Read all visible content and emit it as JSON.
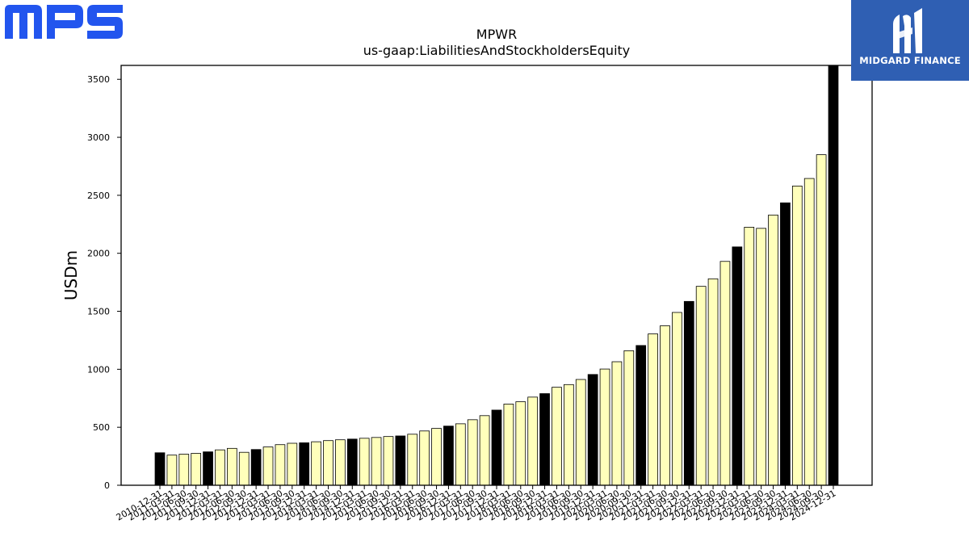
{
  "logos": {
    "left_text": "MPS",
    "right_text": "MIDGARD FINANCE",
    "left_color": "#2255ee",
    "right_bg": "#2f5fb3"
  },
  "chart_data": {
    "type": "bar",
    "title": "MPWR",
    "subtitle": "us-gaap:LiabilitiesAndStockholdersEquity",
    "ylabel": "USDm",
    "xlabel": "",
    "ylim": [
      0,
      3620
    ],
    "yticks": [
      0,
      500,
      1000,
      1500,
      2000,
      2500,
      3000,
      3500
    ],
    "grid": false,
    "colors": {
      "annual": "#000000",
      "quarterly": "#ffffbb",
      "edge": "#000000"
    },
    "categories": [
      "2010-12-31",
      "2011-03-31",
      "2011-06-30",
      "2011-09-30",
      "2011-12-31",
      "2012-03-31",
      "2012-06-30",
      "2012-09-30",
      "2012-12-31",
      "2013-03-31",
      "2013-06-30",
      "2013-09-30",
      "2013-12-31",
      "2014-03-31",
      "2014-06-30",
      "2014-09-30",
      "2014-12-31",
      "2015-03-31",
      "2015-06-30",
      "2015-09-30",
      "2015-12-31",
      "2016-03-31",
      "2016-06-30",
      "2016-09-30",
      "2016-12-31",
      "2017-03-31",
      "2017-06-30",
      "2017-09-30",
      "2017-12-31",
      "2018-03-31",
      "2018-06-30",
      "2018-09-30",
      "2018-12-31",
      "2019-03-31",
      "2019-06-30",
      "2019-09-30",
      "2019-12-31",
      "2020-03-31",
      "2020-06-30",
      "2020-09-30",
      "2020-12-31",
      "2021-03-31",
      "2021-06-30",
      "2021-09-30",
      "2021-12-31",
      "2022-03-31",
      "2022-06-30",
      "2022-09-30",
      "2022-12-31",
      "2023-03-31",
      "2023-06-30",
      "2023-09-30",
      "2023-12-31",
      "2024-03-31",
      "2024-06-30",
      "2024-09-30",
      "2024-12-31"
    ],
    "values": [
      280,
      260,
      268,
      275,
      288,
      305,
      318,
      284,
      308,
      330,
      350,
      362,
      366,
      375,
      385,
      392,
      398,
      405,
      412,
      420,
      425,
      440,
      468,
      490,
      510,
      530,
      565,
      600,
      648,
      700,
      720,
      760,
      790,
      845,
      868,
      912,
      955,
      1002,
      1065,
      1160,
      1205,
      1305,
      1375,
      1490,
      1585,
      1715,
      1780,
      1930,
      2055,
      2225,
      2215,
      2330,
      2435,
      2580,
      2645,
      2850,
      3620
    ],
    "annual": [
      true,
      false,
      false,
      false,
      true,
      false,
      false,
      false,
      true,
      false,
      false,
      false,
      true,
      false,
      false,
      false,
      true,
      false,
      false,
      false,
      true,
      false,
      false,
      false,
      true,
      false,
      false,
      false,
      true,
      false,
      false,
      false,
      true,
      false,
      false,
      false,
      true,
      false,
      false,
      false,
      true,
      false,
      false,
      false,
      true,
      false,
      false,
      false,
      true,
      false,
      false,
      false,
      true,
      false,
      false,
      false,
      true
    ]
  }
}
